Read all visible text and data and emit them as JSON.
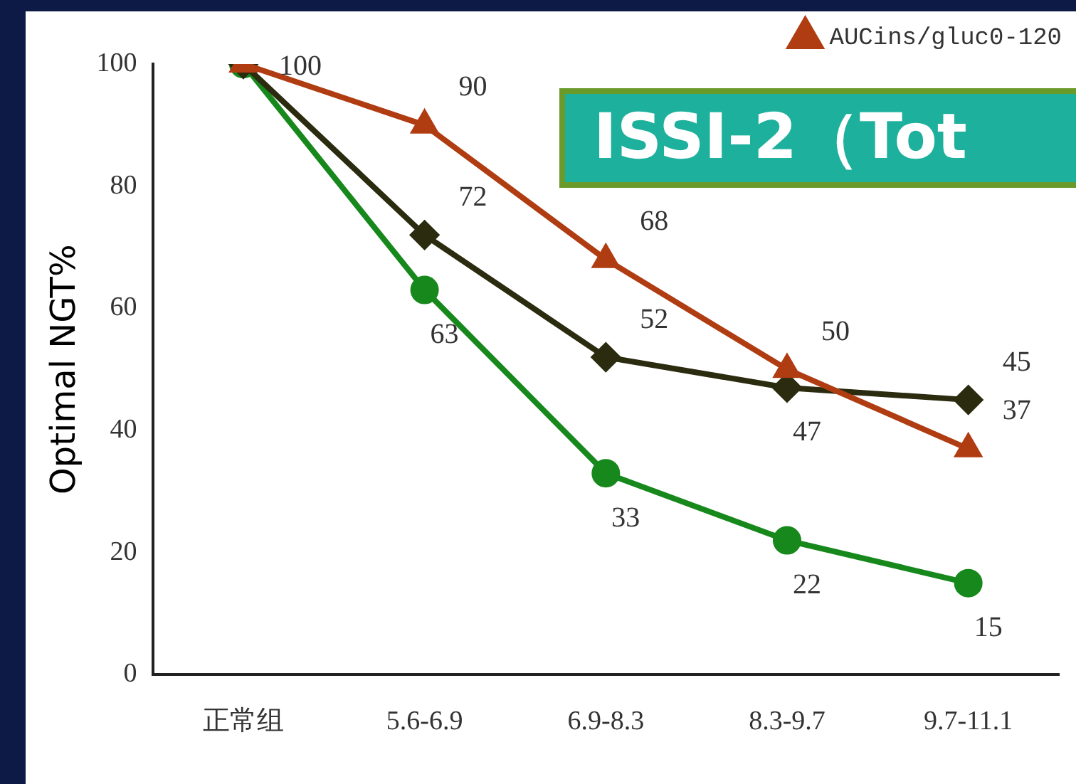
{
  "chart_data": {
    "type": "line",
    "ylabel": "Optimal NGT%",
    "annotations": [
      "ISSI-2（Tot"
    ],
    "categories": [
      "正常组",
      "5.6-6.9",
      "6.9-8.3",
      "8.3-9.7",
      "9.7-11.1"
    ],
    "series": [
      {
        "name": "AUCins/gluc0-120",
        "color": "#b03c12",
        "marker": "triangle",
        "values": [
          100,
          90,
          68,
          50,
          37
        ],
        "value_labels": [
          null,
          "90",
          "68",
          "50",
          "37"
        ]
      },
      {
        "color": "#2b2b10",
        "marker": "diamond",
        "values": [
          100,
          72,
          52,
          47,
          45
        ],
        "value_labels": [
          null,
          "72",
          "52",
          "47",
          "45"
        ]
      },
      {
        "color": "#17881c",
        "marker": "circle",
        "values": [
          100,
          63,
          33,
          22,
          15
        ],
        "value_labels": [
          "100",
          "63",
          "33",
          "22",
          "15"
        ]
      }
    ],
    "ylim": [
      0,
      100
    ],
    "yticks": [
      0,
      20,
      40,
      60,
      80,
      100
    ],
    "grid": false,
    "legend": "top right",
    "line_style": "solid"
  }
}
